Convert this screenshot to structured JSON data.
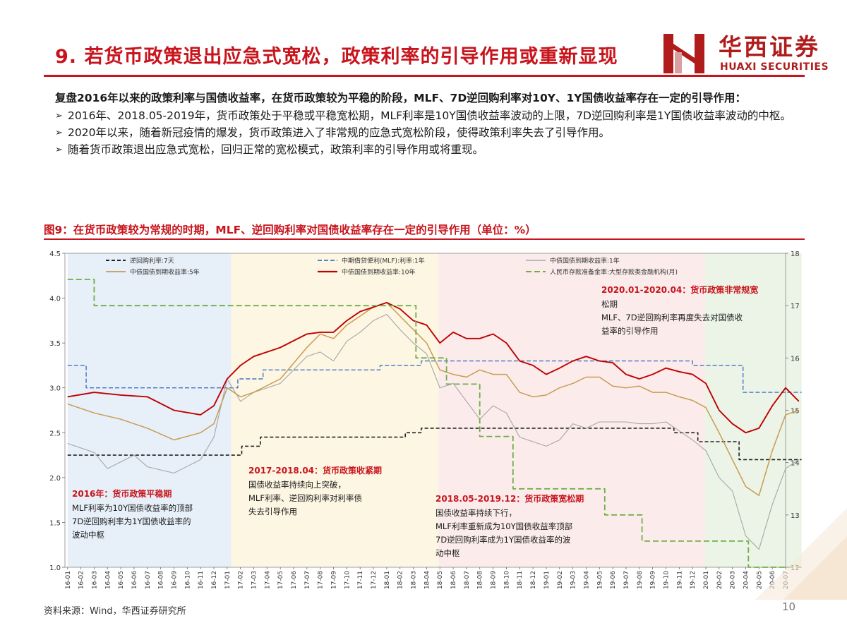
{
  "header": {
    "title": "9. 若货币政策退出应急式宽松，政策利率的引导作用或重新显现",
    "logo_cn": "华西证券",
    "logo_en": "HUAXI SECURITIES"
  },
  "body": {
    "intro": "复盘2016年以来的政策利率与国债收益率，在货币政策较为平稳的阶段，MLF、7D逆回购利率对10Y、1Y国债收益率存在一定的引导作用：",
    "bullets": [
      "2016年、2018.05-2019年，货币政策处于平稳或平稳宽松期，MLF利率是10Y国债收益率波动的上限，7D逆回购利率是1Y国债收益率波动的中枢。",
      "2020年以来，随着新冠疫情的爆发，货币政策进入了非常规的应急式宽松阶段，使得政策利率失去了引导作用。",
      "随着货币政策退出应急式宽松，回归正常的宽松模式，政策利率的引导作用或将重现。"
    ]
  },
  "figure": {
    "title": "图9：在货币政策较为常规的时期，MLF、逆回购利率对国债收益率存在一定的引导作用（单位：%）"
  },
  "footer": {
    "source": "资料来源：Wind，华西证券研究所",
    "page": "10"
  },
  "colors": {
    "brand_red": "#c8141c",
    "repo": "#222222",
    "mlf": "#4472c4",
    "gov1y": "#a6a6a6",
    "gov5y": "#c89b52",
    "gov10y": "#c00000",
    "rrr": "#70ad47",
    "region_blue": "#e7eff8",
    "region_yellow": "#fdf6e3",
    "region_pink": "#fbeceb",
    "region_green": "#ebf4e6"
  },
  "chart_data": {
    "type": "line",
    "x_unit": "month",
    "x_start": "2016-01",
    "x_end": "2020-08",
    "categories": [
      "16-01",
      "16-02",
      "16-03",
      "16-04",
      "16-05",
      "16-06",
      "16-07",
      "16-08",
      "16-09",
      "16-10",
      "16-11",
      "16-12",
      "17-01",
      "17-02",
      "17-03",
      "17-04",
      "17-05",
      "17-06",
      "17-07",
      "17-08",
      "17-09",
      "17-10",
      "17-11",
      "17-12",
      "18-01",
      "18-02",
      "18-03",
      "18-04",
      "18-05",
      "18-06",
      "18-07",
      "18-08",
      "18-09",
      "18-10",
      "18-11",
      "18-12",
      "19-01",
      "19-02",
      "19-03",
      "19-04",
      "19-05",
      "19-06",
      "19-07",
      "19-08",
      "19-09",
      "19-10",
      "19-11",
      "19-12",
      "20-01",
      "20-02",
      "20-03",
      "20-04",
      "20-05",
      "20-06",
      "20-07"
    ],
    "y_left": {
      "min": 1.0,
      "max": 4.5,
      "ticks": [
        "1.0",
        "1.5",
        "2.0",
        "2.5",
        "3.0",
        "3.5",
        "4.0",
        "4.5"
      ]
    },
    "y_right": {
      "min": 12,
      "max": 18,
      "ticks": [
        "12",
        "13",
        "14",
        "15",
        "16",
        "17",
        "18"
      ]
    },
    "legend": [
      "逆回购利率:7天",
      "中期借贷便利(MLF):利率:1年",
      "中债国债到期收益率:1年",
      "中债国债到期收益率:5年",
      "中债国债到期收益率:10年",
      "人民币存款准备金率:大型存款类金融机构(月)"
    ],
    "regions": [
      {
        "start": 0,
        "end": 12.3,
        "color": "region_blue"
      },
      {
        "start": 12.3,
        "end": 27.9,
        "color": "region_yellow"
      },
      {
        "start": 27.9,
        "end": 47.95,
        "color": "region_pink"
      },
      {
        "start": 47.95,
        "end": 55.2,
        "color": "region_green"
      }
    ],
    "annotations": [
      {
        "title": "2016年：货币政策平稳期",
        "lines": [
          "MLF利率为10Y国债收益率的顶部",
          "7D逆回购利率为1Y国债收益率的",
          "波动中枢"
        ]
      },
      {
        "title": "2017-2018.04：货币政策收紧期",
        "lines": [
          "国债收益率持续向上突破，",
          "MLF利率、逆回购利率对利率债",
          "失去引导作用"
        ]
      },
      {
        "title": "2018.05-2019.12：货币政策宽松期",
        "lines": [
          "国债收益率持续下行，",
          "MLF利率重新成为10Y国债收益率顶部",
          "7D逆回购利率成为1Y国债收益率的波",
          "动中枢"
        ]
      },
      {
        "title": "2020.01-2020.04：货币政策非常规宽",
        "lines": [
          "松期",
          "MLF、7D逆回购利率再度失去对国债收",
          "益率的引导作用"
        ]
      }
    ],
    "series": [
      {
        "name": "逆回购利率:7天",
        "axis": "left",
        "step": true,
        "points": [
          [
            0,
            2.25
          ],
          [
            13.1,
            2.25
          ],
          [
            13.1,
            2.35
          ],
          [
            14.5,
            2.35
          ],
          [
            14.5,
            2.45
          ],
          [
            25.4,
            2.45
          ],
          [
            25.4,
            2.5
          ],
          [
            26.6,
            2.5
          ],
          [
            26.6,
            2.55
          ],
          [
            45.6,
            2.55
          ],
          [
            45.6,
            2.5
          ],
          [
            47.4,
            2.5
          ],
          [
            47.4,
            2.4
          ],
          [
            50.5,
            2.4
          ],
          [
            50.5,
            2.2
          ],
          [
            55.2,
            2.2
          ]
        ]
      },
      {
        "name": "中期借贷便利(MLF):利率:1年",
        "axis": "left",
        "step": true,
        "points": [
          [
            0,
            3.25
          ],
          [
            1.4,
            3.25
          ],
          [
            1.4,
            3.0
          ],
          [
            12.8,
            3.0
          ],
          [
            12.8,
            3.1
          ],
          [
            14.7,
            3.1
          ],
          [
            14.7,
            3.2
          ],
          [
            23.5,
            3.2
          ],
          [
            23.5,
            3.25
          ],
          [
            26.6,
            3.25
          ],
          [
            26.6,
            3.3
          ],
          [
            47.0,
            3.3
          ],
          [
            47.0,
            3.25
          ],
          [
            50.8,
            3.25
          ],
          [
            50.8,
            2.95
          ],
          [
            55.2,
            2.95
          ]
        ]
      },
      {
        "name": "中债国债到期收益率:1年",
        "axis": "left",
        "points": [
          [
            0,
            2.38
          ],
          [
            2,
            2.28
          ],
          [
            3,
            2.1
          ],
          [
            5,
            2.25
          ],
          [
            6,
            2.12
          ],
          [
            8,
            2.05
          ],
          [
            10,
            2.2
          ],
          [
            11,
            2.45
          ],
          [
            12,
            3.1
          ],
          [
            13,
            2.85
          ],
          [
            14,
            2.95
          ],
          [
            16,
            3.05
          ],
          [
            18,
            3.35
          ],
          [
            19,
            3.4
          ],
          [
            20,
            3.3
          ],
          [
            21,
            3.52
          ],
          [
            22,
            3.62
          ],
          [
            23,
            3.75
          ],
          [
            24,
            3.82
          ],
          [
            25,
            3.65
          ],
          [
            26,
            3.5
          ],
          [
            27,
            3.38
          ],
          [
            28,
            3.0
          ],
          [
            29,
            3.05
          ],
          [
            30,
            2.85
          ],
          [
            31,
            2.65
          ],
          [
            32,
            2.8
          ],
          [
            33,
            2.72
          ],
          [
            34,
            2.45
          ],
          [
            35,
            2.4
          ],
          [
            36,
            2.35
          ],
          [
            37,
            2.42
          ],
          [
            38,
            2.6
          ],
          [
            39,
            2.55
          ],
          [
            40,
            2.62
          ],
          [
            41,
            2.62
          ],
          [
            42,
            2.62
          ],
          [
            43,
            2.6
          ],
          [
            44,
            2.6
          ],
          [
            45,
            2.62
          ],
          [
            46,
            2.52
          ],
          [
            47,
            2.42
          ],
          [
            48,
            2.3
          ],
          [
            49,
            2.0
          ],
          [
            50,
            1.85
          ],
          [
            51,
            1.35
          ],
          [
            52,
            1.2
          ],
          [
            53,
            1.7
          ],
          [
            54,
            2.1
          ],
          [
            55,
            2.2
          ]
        ]
      },
      {
        "name": "中债国债到期收益率:5年",
        "axis": "left",
        "points": [
          [
            0,
            2.82
          ],
          [
            2,
            2.72
          ],
          [
            4,
            2.65
          ],
          [
            6,
            2.55
          ],
          [
            8,
            2.42
          ],
          [
            10,
            2.5
          ],
          [
            11,
            2.6
          ],
          [
            12,
            3.0
          ],
          [
            13,
            2.9
          ],
          [
            14,
            2.95
          ],
          [
            16,
            3.1
          ],
          [
            18,
            3.45
          ],
          [
            19,
            3.6
          ],
          [
            20,
            3.55
          ],
          [
            21,
            3.7
          ],
          [
            22,
            3.8
          ],
          [
            23,
            3.9
          ],
          [
            24,
            3.95
          ],
          [
            25,
            3.8
          ],
          [
            26,
            3.65
          ],
          [
            27,
            3.5
          ],
          [
            28,
            3.2
          ],
          [
            29,
            3.15
          ],
          [
            30,
            3.12
          ],
          [
            31,
            3.2
          ],
          [
            32,
            3.15
          ],
          [
            33,
            3.15
          ],
          [
            34,
            2.95
          ],
          [
            35,
            2.9
          ],
          [
            36,
            2.92
          ],
          [
            37,
            3.0
          ],
          [
            38,
            3.05
          ],
          [
            39,
            3.12
          ],
          [
            40,
            3.12
          ],
          [
            41,
            3.02
          ],
          [
            42,
            3.0
          ],
          [
            43,
            3.02
          ],
          [
            44,
            2.95
          ],
          [
            45,
            2.95
          ],
          [
            46,
            2.9
          ],
          [
            47,
            2.86
          ],
          [
            48,
            2.78
          ],
          [
            49,
            2.5
          ],
          [
            50,
            2.2
          ],
          [
            51,
            1.9
          ],
          [
            52,
            1.8
          ],
          [
            53,
            2.3
          ],
          [
            54,
            2.7
          ],
          [
            55,
            2.75
          ]
        ]
      },
      {
        "name": "中债国债到期收益率:10年",
        "axis": "left",
        "points": [
          [
            0,
            2.9
          ],
          [
            2,
            2.95
          ],
          [
            4,
            2.92
          ],
          [
            6,
            2.9
          ],
          [
            8,
            2.75
          ],
          [
            10,
            2.7
          ],
          [
            11,
            2.8
          ],
          [
            12,
            3.1
          ],
          [
            13,
            3.25
          ],
          [
            14,
            3.35
          ],
          [
            16,
            3.45
          ],
          [
            18,
            3.6
          ],
          [
            19,
            3.62
          ],
          [
            20,
            3.62
          ],
          [
            21,
            3.75
          ],
          [
            22,
            3.85
          ],
          [
            23,
            3.9
          ],
          [
            24,
            3.95
          ],
          [
            25,
            3.88
          ],
          [
            26,
            3.75
          ],
          [
            27,
            3.7
          ],
          [
            28,
            3.5
          ],
          [
            29,
            3.62
          ],
          [
            30,
            3.55
          ],
          [
            31,
            3.55
          ],
          [
            32,
            3.6
          ],
          [
            33,
            3.5
          ],
          [
            34,
            3.3
          ],
          [
            35,
            3.25
          ],
          [
            36,
            3.15
          ],
          [
            37,
            3.22
          ],
          [
            38,
            3.3
          ],
          [
            39,
            3.35
          ],
          [
            40,
            3.3
          ],
          [
            41,
            3.28
          ],
          [
            42,
            3.15
          ],
          [
            43,
            3.1
          ],
          [
            44,
            3.15
          ],
          [
            45,
            3.22
          ],
          [
            46,
            3.18
          ],
          [
            47,
            3.15
          ],
          [
            48,
            3.05
          ],
          [
            49,
            2.75
          ],
          [
            50,
            2.6
          ],
          [
            51,
            2.5
          ],
          [
            52,
            2.55
          ],
          [
            53,
            2.8
          ],
          [
            54,
            3.0
          ],
          [
            55,
            2.85
          ]
        ]
      },
      {
        "name": "人民币存款准备金率:大型存款类金融机构(月)",
        "axis": "right",
        "step": true,
        "points": [
          [
            0,
            17.5
          ],
          [
            2.0,
            17.5
          ],
          [
            2.0,
            17.0
          ],
          [
            26.2,
            17.0
          ],
          [
            26.2,
            16.0
          ],
          [
            28.5,
            16.0
          ],
          [
            28.5,
            15.5
          ],
          [
            31.0,
            15.5
          ],
          [
            31.0,
            14.5
          ],
          [
            33.5,
            14.5
          ],
          [
            33.5,
            13.5
          ],
          [
            40.4,
            13.5
          ],
          [
            40.4,
            13.0
          ],
          [
            43.2,
            13.0
          ],
          [
            43.2,
            12.5
          ],
          [
            51.2,
            12.5
          ],
          [
            51.2,
            12.0
          ],
          [
            55.2,
            12.0
          ]
        ]
      }
    ]
  }
}
